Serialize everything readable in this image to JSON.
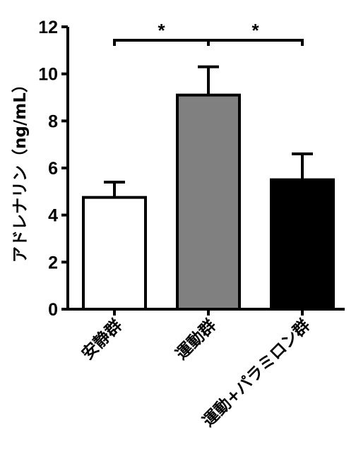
{
  "chart_data": {
    "type": "bar",
    "ylabel": "アドレナリン（ng/mL）",
    "ylim": [
      0,
      12
    ],
    "yticks": [
      0,
      2,
      4,
      6,
      8,
      10,
      12
    ],
    "categories": [
      "安静群",
      "運動群",
      "運動+パラミロン群"
    ],
    "values": [
      4.75,
      9.1,
      5.5
    ],
    "errors": [
      0.65,
      1.2,
      1.1
    ],
    "bar_colors": [
      "#ffffff",
      "#808080",
      "#000000"
    ],
    "significance": [
      {
        "from": 0,
        "to": 1,
        "label": "*"
      },
      {
        "from": 1,
        "to": 2,
        "label": "*"
      }
    ],
    "grid": false,
    "legend": "none"
  }
}
